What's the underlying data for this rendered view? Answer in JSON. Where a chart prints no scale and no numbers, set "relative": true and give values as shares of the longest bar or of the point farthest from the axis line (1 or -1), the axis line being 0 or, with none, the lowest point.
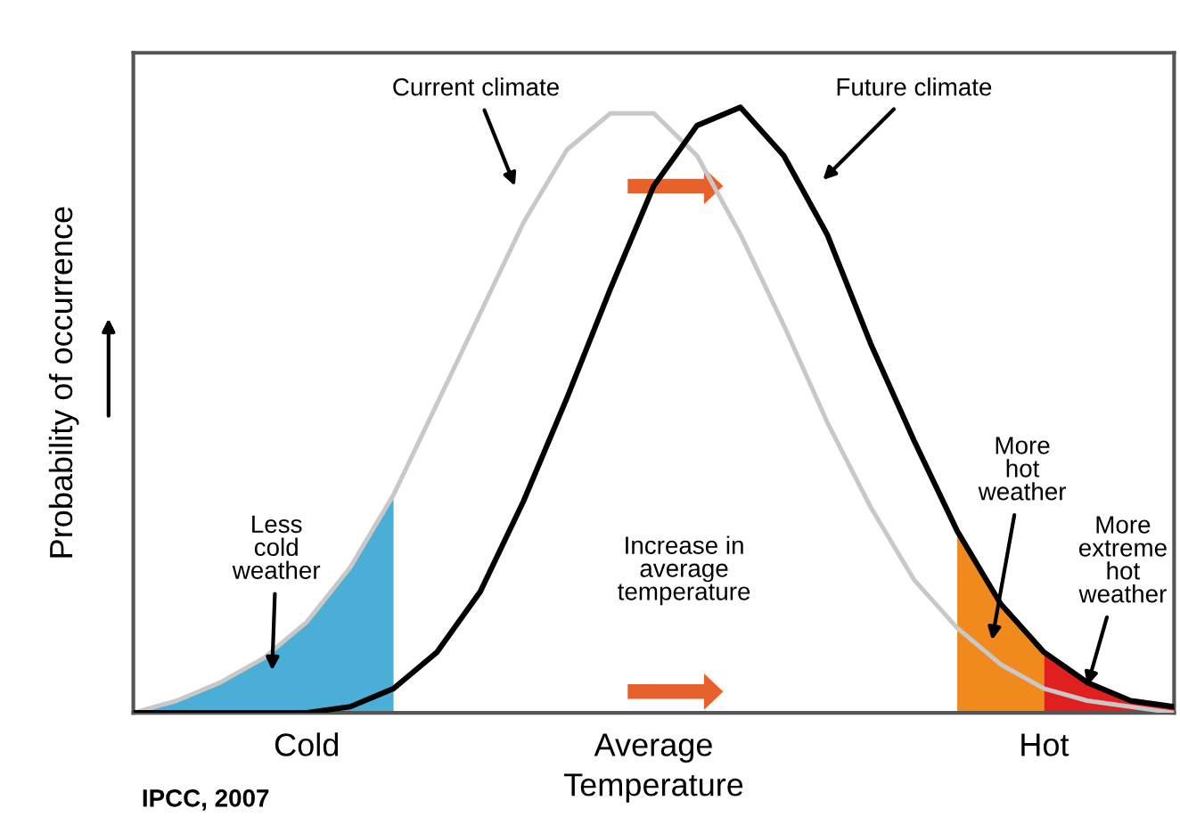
{
  "chart_data": {
    "type": "line",
    "relative": true,
    "xlabel": "Temperature",
    "ylabel": "Probability of occurrence",
    "categories": [
      null,
      null,
      null,
      null,
      "Cold",
      null,
      null,
      null,
      null,
      null,
      null,
      null,
      "Average",
      null,
      null,
      null,
      null,
      null,
      null,
      null,
      null,
      "Hot",
      null,
      null,
      null
    ],
    "series": [
      {
        "type": "area",
        "color": "#4aaed6",
        "values": [
          0.0,
          0.02,
          0.05,
          0.09,
          0.15,
          0.24,
          0.36,
          null,
          null,
          null,
          null,
          null,
          null,
          null,
          null,
          null,
          null,
          null,
          null,
          null,
          null,
          null,
          null,
          null,
          null
        ]
      },
      {
        "type": "area",
        "color": "#f08a1c",
        "values": [
          null,
          null,
          null,
          null,
          null,
          null,
          null,
          null,
          null,
          null,
          null,
          null,
          null,
          null,
          null,
          null,
          null,
          null,
          null,
          0.3,
          0.18,
          0.1,
          null,
          null,
          null
        ]
      },
      {
        "type": "area",
        "color": "#e0201e",
        "values": [
          null,
          null,
          null,
          null,
          null,
          null,
          null,
          null,
          null,
          null,
          null,
          null,
          null,
          null,
          null,
          null,
          null,
          null,
          null,
          null,
          null,
          0.1,
          0.05,
          0.02,
          0.01
        ]
      },
      {
        "color": "#c8c8c8",
        "values": [
          0.0,
          0.02,
          0.05,
          0.09,
          0.15,
          0.24,
          0.36,
          0.51,
          0.66,
          0.81,
          0.93,
          0.99,
          0.99,
          0.92,
          0.79,
          0.64,
          0.48,
          0.34,
          0.22,
          0.14,
          0.08,
          0.04,
          0.02,
          0.01,
          0.0
        ]
      },
      {
        "color": "#000000",
        "values": [
          0.0,
          0.0,
          0.0,
          0.0,
          0.0,
          0.01,
          0.04,
          0.1,
          0.2,
          0.35,
          0.52,
          0.7,
          0.87,
          0.97,
          1.0,
          0.92,
          0.79,
          0.61,
          0.45,
          0.3,
          0.18,
          0.1,
          0.05,
          0.02,
          0.01
        ]
      }
    ],
    "annotations": [
      "Current climate",
      "Future climate",
      "Less\ncold\nweather",
      "Increase in\naverage\ntemperature",
      "More\nhot\nweather",
      "More\nextreme\nhot\nweather",
      "IPCC, 2007"
    ],
    "grid": false,
    "legend": false
  }
}
